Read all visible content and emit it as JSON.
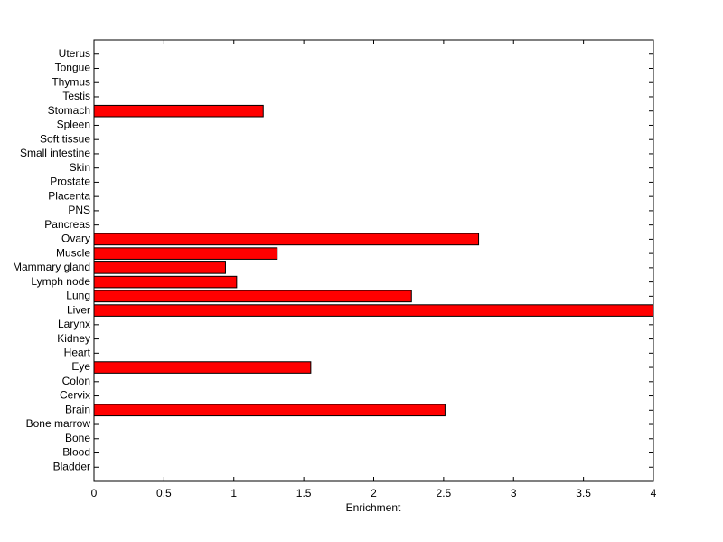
{
  "chart_data": {
    "type": "barh",
    "xlabel": "Enrichment",
    "categories": [
      "Bladder",
      "Blood",
      "Bone",
      "Bone marrow",
      "Brain",
      "Cervix",
      "Colon",
      "Eye",
      "Heart",
      "Kidney",
      "Larynx",
      "Liver",
      "Lung",
      "Lymph node",
      "Mammary gland",
      "Muscle",
      "Ovary",
      "Pancreas",
      "PNS",
      "Placenta",
      "Prostate",
      "Skin",
      "Small intestine",
      "Soft tissue",
      "Spleen",
      "Stomach",
      "Testis",
      "Thymus",
      "Tongue",
      "Uterus"
    ],
    "values": [
      0,
      0,
      0,
      0,
      2.51,
      0,
      0,
      1.55,
      0,
      0,
      0,
      4,
      2.27,
      1.02,
      0.94,
      1.31,
      2.75,
      0,
      0,
      0,
      0,
      0,
      0,
      0,
      0,
      1.21,
      0,
      0,
      0,
      0
    ],
    "color": "#ff0000",
    "xlim": [
      0,
      4
    ],
    "xticks": [
      0,
      0.5,
      1,
      1.5,
      2,
      2.5,
      3,
      3.5,
      4
    ],
    "grid": false
  }
}
